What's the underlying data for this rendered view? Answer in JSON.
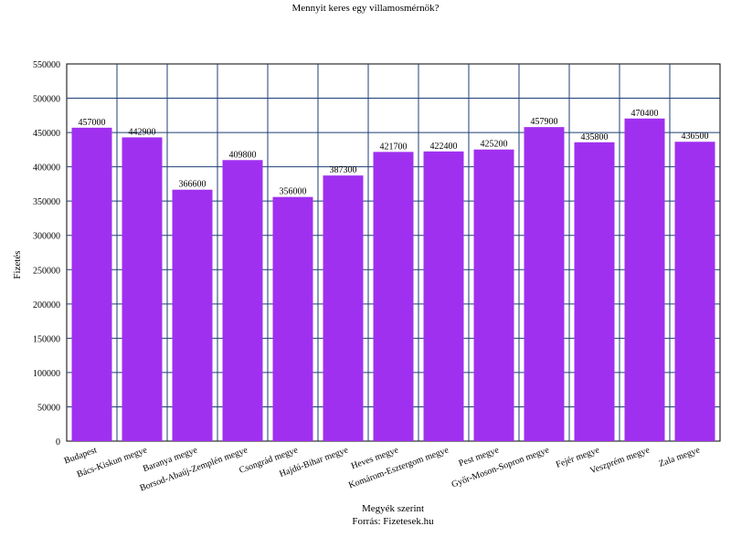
{
  "chart_data": {
    "type": "bar",
    "title": "Mennyit keres egy villamosmérnök?",
    "xlabel": "Megyék szerint",
    "source": "Forrás: Fizetesek.hu",
    "ylabel": "Fizetés",
    "ylim": [
      0,
      550000
    ],
    "yticks": [
      0,
      50000,
      100000,
      150000,
      200000,
      250000,
      300000,
      350000,
      400000,
      450000,
      500000,
      550000
    ],
    "grid": true,
    "bar_color": "#a030f0",
    "categories": [
      "Budapest",
      "Bács-Kiskun megye",
      "Baranya megye",
      "Borsod-Abaúj-Zemplén megye",
      "Csongrád megye",
      "Hajdú-Bihar megye",
      "Heves megye",
      "Komárom-Esztergom megye",
      "Pest megye",
      "Győr-Moson-Sopron megye",
      "Fejér megye",
      "Veszprém megye",
      "Zala megye"
    ],
    "values": [
      457000,
      442900,
      366600,
      409800,
      356000,
      387300,
      421700,
      422400,
      425200,
      457900,
      435800,
      470400,
      436500
    ]
  }
}
